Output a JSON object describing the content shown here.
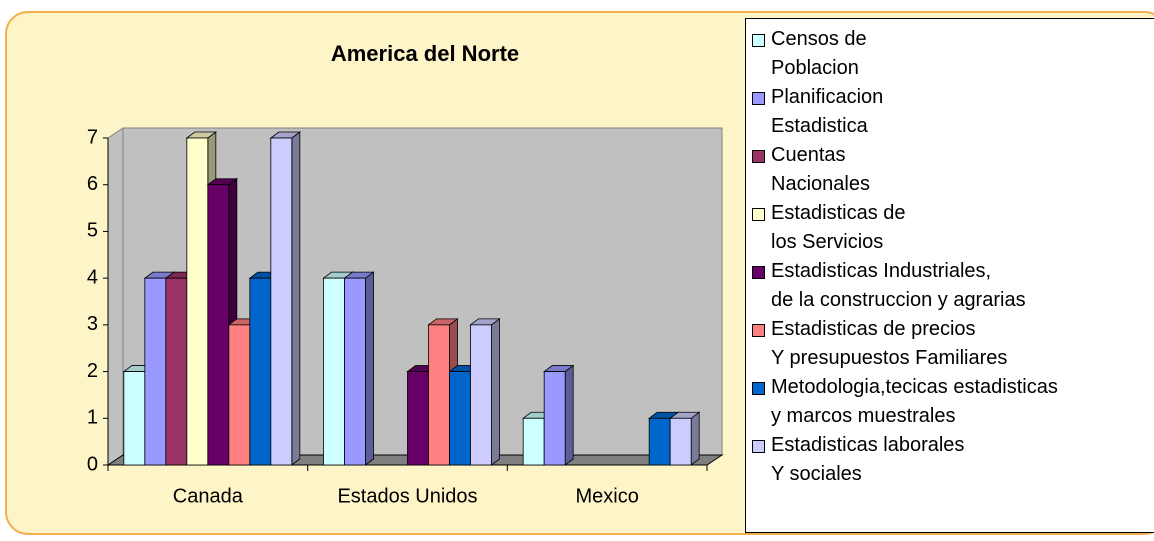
{
  "chart_data": {
    "type": "bar3d",
    "title": "America del Norte",
    "categories": [
      "Canada",
      "Estados Unidos",
      "Mexico"
    ],
    "series": [
      {
        "name": "Censos de\nPoblacion",
        "color": "#ccffff",
        "values": [
          2,
          4,
          1
        ]
      },
      {
        "name": "Planificacion\nEstadistica",
        "color": "#9999ff",
        "values": [
          4,
          4,
          2
        ]
      },
      {
        "name": "Cuentas\nNacionales",
        "color": "#993366",
        "values": [
          4,
          null,
          null
        ]
      },
      {
        "name": "Estadisticas de\nlos Servicios",
        "color": "#ffffcc",
        "values": [
          7,
          null,
          null
        ]
      },
      {
        "name": "Estadisticas Industriales,\nde la construccion y agrarias",
        "color": "#660066",
        "values": [
          6,
          2,
          null
        ]
      },
      {
        "name": "Estadisticas de precios\nY presupuestos Familiares",
        "color": "#ff8080",
        "values": [
          3,
          3,
          null
        ]
      },
      {
        "name": "Metodologia,tecicas estadisticas\ny marcos muestrales",
        "color": "#0066cc",
        "values": [
          4,
          2,
          1
        ]
      },
      {
        "name": "Estadisticas laborales\nY sociales",
        "color": "#ccccff",
        "values": [
          7,
          3,
          1
        ]
      }
    ],
    "ylim": [
      0,
      7
    ],
    "yticks": [
      0,
      1,
      2,
      3,
      4,
      5,
      6,
      7
    ]
  }
}
